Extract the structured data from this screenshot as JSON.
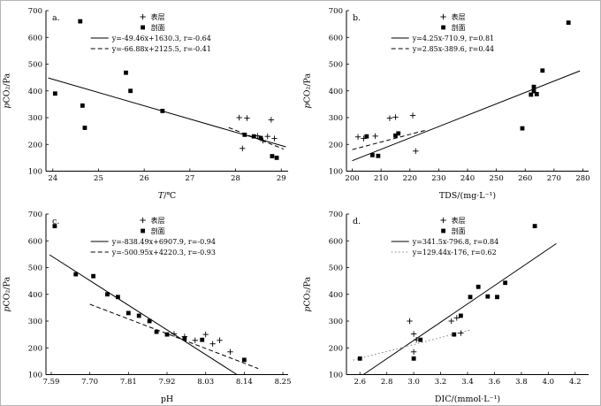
{
  "figure": {
    "background": "#ffffff",
    "text_color": "#000000"
  },
  "chart_data": [
    {
      "id": "a",
      "type": "scatter",
      "panel_label": "a.",
      "xlabel_italic": "T",
      "xlabel_rest": "/℃",
      "ylabel_italic": "p",
      "ylabel_rest": "CO₂/Pa",
      "xlim": [
        23.85,
        29.15
      ],
      "ylim": [
        100,
        700
      ],
      "xticks": [
        {
          "v": 24,
          "label": "24"
        },
        {
          "v": 25,
          "label": "25"
        },
        {
          "v": 26,
          "label": "26"
        },
        {
          "v": 27,
          "label": "27"
        },
        {
          "v": 28,
          "label": "28"
        },
        {
          "v": 29,
          "label": "29"
        }
      ],
      "yticks": [
        {
          "v": 100,
          "label": "100"
        },
        {
          "v": 200,
          "label": "200"
        },
        {
          "v": 300,
          "label": "300"
        },
        {
          "v": 400,
          "label": "400"
        },
        {
          "v": 500,
          "label": "500"
        },
        {
          "v": 600,
          "label": "600"
        },
        {
          "v": 700,
          "label": "700"
        }
      ],
      "legend_markers": [
        {
          "marker": "plus",
          "label": "表层"
        },
        {
          "marker": "square",
          "label": "剖面"
        }
      ],
      "fit_lines": [
        {
          "style": "solid",
          "color": "#000000",
          "equation": "y=-49.46x+1630.3, r=-0.64",
          "slope": -49.46,
          "intercept": 1630.3,
          "x_range": [
            23.9,
            29.1
          ]
        },
        {
          "style": "dashed",
          "color": "#000000",
          "equation": "y=-66.88x+2125.5, r=-0.41",
          "slope": -66.88,
          "intercept": 2125.5,
          "x_range": [
            27.85,
            29.05
          ]
        }
      ],
      "series": [
        {
          "name": "表层",
          "marker": "plus",
          "points": [
            [
              28.08,
              300
            ],
            [
              28.25,
              298
            ],
            [
              28.78,
              292
            ],
            [
              28.15,
              185
            ],
            [
              28.48,
              232
            ],
            [
              28.6,
              214
            ],
            [
              28.7,
              230
            ],
            [
              28.85,
              222
            ]
          ]
        },
        {
          "name": "剖面",
          "marker": "square",
          "points": [
            [
              24.05,
              390
            ],
            [
              24.6,
              660
            ],
            [
              24.65,
              345
            ],
            [
              24.7,
              262
            ],
            [
              25.6,
              468
            ],
            [
              25.7,
              400
            ],
            [
              26.4,
              325
            ],
            [
              28.2,
              236
            ],
            [
              28.4,
              230
            ],
            [
              28.55,
              224
            ],
            [
              28.8,
              156
            ],
            [
              28.9,
              150
            ]
          ]
        }
      ]
    },
    {
      "id": "b",
      "type": "scatter",
      "panel_label": "b.",
      "xlabel_italic": "",
      "xlabel_rest": "TDS/(mg·L⁻¹)",
      "ylabel_italic": "p",
      "ylabel_rest": "CO₂/Pa",
      "xlim": [
        198,
        282
      ],
      "ylim": [
        100,
        700
      ],
      "xticks": [
        {
          "v": 200,
          "label": "200"
        },
        {
          "v": 210,
          "label": "210"
        },
        {
          "v": 220,
          "label": "220"
        },
        {
          "v": 230,
          "label": "230"
        },
        {
          "v": 240,
          "label": "240"
        },
        {
          "v": 250,
          "label": "250"
        },
        {
          "v": 260,
          "label": "260"
        },
        {
          "v": 270,
          "label": "270"
        },
        {
          "v": 280,
          "label": "280"
        }
      ],
      "yticks": [
        {
          "v": 100,
          "label": "100"
        },
        {
          "v": 200,
          "label": "200"
        },
        {
          "v": 300,
          "label": "300"
        },
        {
          "v": 400,
          "label": "400"
        },
        {
          "v": 500,
          "label": "500"
        },
        {
          "v": 600,
          "label": "600"
        },
        {
          "v": 700,
          "label": "700"
        }
      ],
      "legend_markers": [
        {
          "marker": "plus",
          "label": "表层"
        },
        {
          "marker": "square",
          "label": "剖面"
        }
      ],
      "fit_lines": [
        {
          "style": "solid",
          "color": "#000000",
          "equation": "y=4.25x-710.9, r=0.81",
          "slope": 4.25,
          "intercept": -710.9,
          "x_range": [
            200,
            279
          ]
        },
        {
          "style": "dashed",
          "color": "#000000",
          "equation": "y=2.85x-389.6, r=0.44",
          "slope": 2.85,
          "intercept": -389.6,
          "x_range": [
            200,
            226
          ]
        }
      ],
      "series": [
        {
          "name": "表层",
          "marker": "plus",
          "points": [
            [
              202,
              228
            ],
            [
              204,
              222
            ],
            [
              208,
              231
            ],
            [
              213,
              298
            ],
            [
              215,
              302
            ],
            [
              221,
              308
            ],
            [
              222,
              175
            ]
          ]
        },
        {
          "name": "剖面",
          "marker": "square",
          "points": [
            [
              205,
              230
            ],
            [
              207,
              160
            ],
            [
              209,
              157
            ],
            [
              215,
              233
            ],
            [
              216,
              241
            ],
            [
              259,
              260
            ],
            [
              262,
              386
            ],
            [
              263,
              399
            ],
            [
              263,
              415
            ],
            [
              264,
              388
            ],
            [
              266,
              476
            ],
            [
              275,
              655
            ]
          ]
        }
      ]
    },
    {
      "id": "c",
      "type": "scatter",
      "panel_label": "c.",
      "xlabel_italic": "",
      "xlabel_rest": "pH",
      "ylabel_italic": "p",
      "ylabel_rest": "CO₂/Pa",
      "xlim": [
        7.575,
        8.265
      ],
      "ylim": [
        100,
        700
      ],
      "xticks": [
        {
          "v": 7.59,
          "label": "7.59"
        },
        {
          "v": 7.7,
          "label": "7.70"
        },
        {
          "v": 7.81,
          "label": "7.81"
        },
        {
          "v": 7.92,
          "label": "7.92"
        },
        {
          "v": 8.03,
          "label": "8.03"
        },
        {
          "v": 8.14,
          "label": "8.14"
        },
        {
          "v": 8.25,
          "label": "8.25"
        }
      ],
      "yticks": [
        {
          "v": 100,
          "label": "100"
        },
        {
          "v": 200,
          "label": "200"
        },
        {
          "v": 300,
          "label": "300"
        },
        {
          "v": 400,
          "label": "400"
        },
        {
          "v": 500,
          "label": "500"
        },
        {
          "v": 600,
          "label": "600"
        },
        {
          "v": 700,
          "label": "700"
        }
      ],
      "legend_markers": [
        {
          "marker": "plus",
          "label": "表层"
        },
        {
          "marker": "square",
          "label": "剖面"
        }
      ],
      "fit_lines": [
        {
          "style": "solid",
          "color": "#000000",
          "equation": "y=-838.49x+6907.9, r=-0.94",
          "slope": -838.49,
          "intercept": 6907.9,
          "x_range": [
            7.585,
            8.25
          ]
        },
        {
          "style": "dashed",
          "color": "#000000",
          "equation": "y=-500.95x+4220.3, r=-0.93",
          "slope": -500.95,
          "intercept": 4220.3,
          "x_range": [
            7.7,
            8.18
          ]
        }
      ],
      "series": [
        {
          "name": "表层",
          "marker": "plus",
          "points": [
            [
              7.94,
              252
            ],
            [
              7.97,
              242
            ],
            [
              8.0,
              228
            ],
            [
              8.03,
              250
            ],
            [
              8.05,
              215
            ],
            [
              8.07,
              228
            ],
            [
              8.1,
              185
            ]
          ]
        },
        {
          "name": "剖面",
          "marker": "square",
          "points": [
            [
              7.6,
              655
            ],
            [
              7.66,
              475
            ],
            [
              7.71,
              468
            ],
            [
              7.75,
              400
            ],
            [
              7.78,
              390
            ],
            [
              7.81,
              330
            ],
            [
              7.84,
              320
            ],
            [
              7.87,
              300
            ],
            [
              7.89,
              260
            ],
            [
              7.92,
              250
            ],
            [
              7.97,
              235
            ],
            [
              8.02,
              230
            ],
            [
              8.14,
              155
            ]
          ]
        }
      ]
    },
    {
      "id": "d",
      "type": "scatter",
      "panel_label": "d.",
      "xlabel_italic": "",
      "xlabel_rest": "DIC/(mmol·L⁻¹)",
      "ylabel_italic": "p",
      "ylabel_rest": "CO₂/Pa",
      "xlim": [
        2.5,
        4.3
      ],
      "ylim": [
        100,
        700
      ],
      "xticks": [
        {
          "v": 2.6,
          "label": "2.6"
        },
        {
          "v": 2.8,
          "label": "2.8"
        },
        {
          "v": 3.0,
          "label": "3.0"
        },
        {
          "v": 3.2,
          "label": "3.2"
        },
        {
          "v": 3.4,
          "label": "3.4"
        },
        {
          "v": 3.6,
          "label": "3.6"
        },
        {
          "v": 3.8,
          "label": "3.8"
        },
        {
          "v": 4.0,
          "label": "4.0"
        },
        {
          "v": 4.2,
          "label": "4.2"
        }
      ],
      "yticks": [
        {
          "v": 100,
          "label": "100"
        },
        {
          "v": 200,
          "label": "200"
        },
        {
          "v": 300,
          "label": "300"
        },
        {
          "v": 400,
          "label": "400"
        },
        {
          "v": 500,
          "label": "500"
        },
        {
          "v": 600,
          "label": "600"
        },
        {
          "v": 700,
          "label": "700"
        }
      ],
      "legend_markers": [
        {
          "marker": "plus",
          "label": "表层"
        },
        {
          "marker": "square",
          "label": "剖面"
        }
      ],
      "fit_lines": [
        {
          "style": "solid",
          "color": "#000000",
          "equation": "y=341.5x-796.8, r=0.84",
          "slope": 341.5,
          "intercept": -796.8,
          "x_range": [
            2.6,
            4.06
          ]
        },
        {
          "style": "dotted",
          "color": "#888888",
          "equation": "y=129.44x-176, r=0.62",
          "slope": 129.44,
          "intercept": -176,
          "x_range": [
            2.55,
            3.42
          ]
        }
      ],
      "series": [
        {
          "name": "表层",
          "marker": "plus",
          "points": [
            [
              2.97,
              300
            ],
            [
              3.0,
              252
            ],
            [
              3.0,
              185
            ],
            [
              3.02,
              230
            ],
            [
              3.28,
              300
            ],
            [
              3.32,
              312
            ],
            [
              3.35,
              255
            ]
          ]
        },
        {
          "name": "剖面",
          "marker": "square",
          "points": [
            [
              2.6,
              160
            ],
            [
              3.0,
              160
            ],
            [
              3.05,
              230
            ],
            [
              3.3,
              250
            ],
            [
              3.35,
              320
            ],
            [
              3.42,
              390
            ],
            [
              3.48,
              428
            ],
            [
              3.55,
              392
            ],
            [
              3.62,
              390
            ],
            [
              3.68,
              443
            ],
            [
              3.9,
              655
            ]
          ]
        }
      ]
    }
  ]
}
